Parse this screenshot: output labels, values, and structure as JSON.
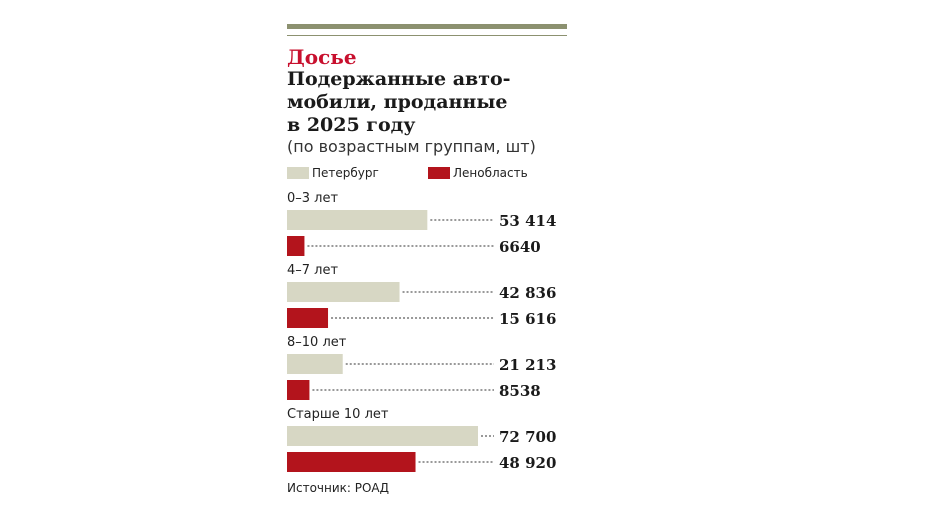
{
  "rubric": "Досье",
  "title_lines": [
    "Подержанные авто-",
    "мобили, проданные",
    "в 2025 году"
  ],
  "subtitle": "(по возрастным группам, шт)",
  "source": "Источник: РОАД",
  "colors": {
    "petersburg": "#d7d7c4",
    "lenoblast": "#b3141c",
    "rubric": "#c8102e",
    "rule": "#8c9170",
    "leader": "#333333"
  },
  "chart_data": {
    "type": "bar",
    "orientation": "horizontal",
    "title": "Подержанные автомобили, проданные в 2025 году",
    "subtitle": "(по возрастным группам, шт)",
    "categories": [
      "0–3 лет",
      "4–7 лет",
      "8–10 лет",
      "Старше 10 лет"
    ],
    "series": [
      {
        "name": "Петербург",
        "values": [
          53414,
          42836,
          21213,
          72700
        ],
        "labels": [
          "53 414",
          "42 836",
          "21 213",
          "72 700"
        ]
      },
      {
        "name": "Ленобласть",
        "values": [
          6640,
          15616,
          8538,
          48920
        ],
        "labels": [
          "6640",
          "15 616",
          "8538",
          "48 920"
        ]
      }
    ],
    "legend": "top-left",
    "grid": false
  }
}
